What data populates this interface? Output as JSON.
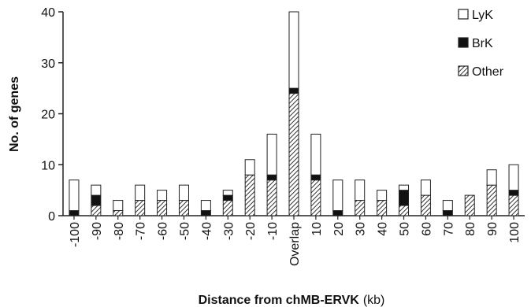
{
  "chart_data": {
    "type": "bar",
    "stacked": true,
    "categories": [
      "-100",
      "-90",
      "-80",
      "-70",
      "-60",
      "-50",
      "-40",
      "-30",
      "-20",
      "-10",
      "Overlap",
      "10",
      "20",
      "30",
      "40",
      "50",
      "60",
      "70",
      "80",
      "90",
      "100"
    ],
    "series": [
      {
        "name": "Other",
        "values": [
          0,
          2,
          1,
          3,
          3,
          3,
          0,
          3,
          8,
          7,
          24,
          7,
          0,
          3,
          3,
          2,
          4,
          0,
          4,
          6,
          4
        ]
      },
      {
        "name": "BrK",
        "values": [
          1,
          2,
          0,
          0,
          0,
          0,
          1,
          1,
          0,
          1,
          1,
          1,
          1,
          0,
          0,
          3,
          0,
          1,
          0,
          0,
          1
        ]
      },
      {
        "name": "LyK",
        "values": [
          6,
          2,
          2,
          3,
          2,
          3,
          2,
          1,
          3,
          8,
          15,
          8,
          6,
          4,
          2,
          1,
          3,
          2,
          0,
          3,
          5
        ]
      }
    ],
    "legend": [
      "LyK",
      "BrK",
      "Other"
    ],
    "legend_position": "top-right",
    "ylim": [
      0,
      40
    ],
    "yticks": [
      0,
      10,
      20,
      30,
      40
    ],
    "ylabel": "No. of genes",
    "xlabel": "Distance from chMB-ERVK",
    "xlabel_unit": "(kb)",
    "colors": {
      "LyK": "#ffffff",
      "BrK": "#111111",
      "Other": "hatched",
      "stroke": "#222222"
    }
  }
}
